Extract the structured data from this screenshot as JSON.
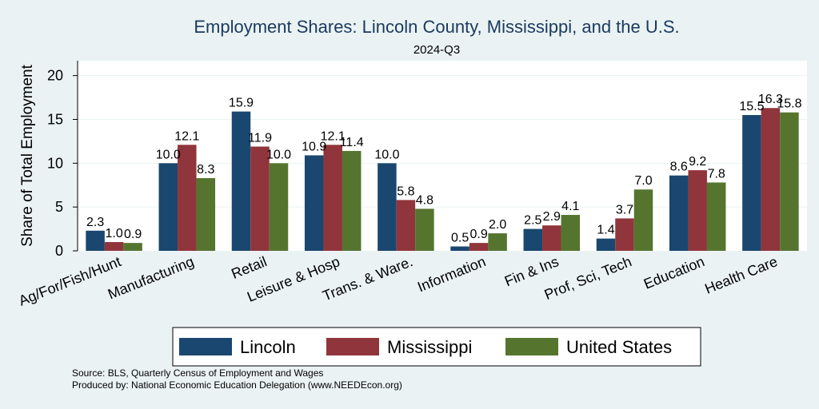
{
  "chart_data": {
    "type": "bar",
    "title": "Employment Shares: Lincoln County, Mississippi, and the U.S.",
    "subtitle": "2024-Q3",
    "ylabel": "Share of Total Employment",
    "ylim": [
      0,
      21.7
    ],
    "yticks": [
      0,
      5,
      10,
      15,
      20
    ],
    "grid": true,
    "legend_position": "bottom",
    "categories": [
      "Ag/For/Fish/Hunt",
      "Manufacturing",
      "Retail",
      "Leisure & Hosp",
      "Trans. & Ware.",
      "Information",
      "Fin & Ins",
      "Prof, Sci, Tech",
      "Education",
      "Health Care"
    ],
    "series": [
      {
        "name": "Lincoln",
        "color": "#1a476f",
        "values": [
          2.3,
          10.0,
          15.9,
          10.9,
          10.0,
          0.5,
          2.5,
          1.4,
          8.6,
          15.5
        ]
      },
      {
        "name": "Mississippi",
        "color": "#90353b",
        "values": [
          1.0,
          12.1,
          11.9,
          12.1,
          5.8,
          0.9,
          2.9,
          3.7,
          9.2,
          16.3
        ]
      },
      {
        "name": "United States",
        "color": "#55752f",
        "values": [
          0.9,
          8.3,
          10.0,
          11.4,
          4.8,
          2.0,
          4.1,
          7.0,
          7.8,
          15.8
        ]
      }
    ],
    "notes": [
      "Source: BLS, Quarterly Census of Employment and Wages",
      "Produced by: National Economic Education Delegation (www.NEEDEcon.org)"
    ]
  }
}
